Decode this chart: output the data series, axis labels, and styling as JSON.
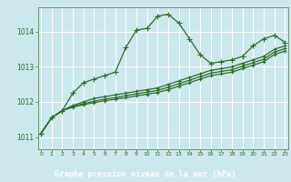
{
  "title": "Graphe pression niveau de la mer (hPa)",
  "bg_color": "#cde8ed",
  "plot_bg_color": "#cde8ed",
  "grid_color": "#ffffff",
  "line_color": "#2d6e2d",
  "xlabel_bg": "#2d6e2d",
  "xlabel_fg": "#ffffff",
  "x_ticks": [
    0,
    1,
    2,
    3,
    4,
    5,
    6,
    7,
    8,
    9,
    10,
    11,
    12,
    13,
    14,
    15,
    16,
    17,
    18,
    19,
    20,
    21,
    22,
    23
  ],
  "y_ticks": [
    1011,
    1012,
    1013,
    1014
  ],
  "ylim": [
    1010.65,
    1014.7
  ],
  "xlim": [
    -0.3,
    23.3
  ],
  "series": [
    [
      1011.1,
      1011.55,
      1011.75,
      1012.25,
      1012.55,
      1012.65,
      1012.75,
      1012.85,
      1013.55,
      1014.05,
      1014.1,
      1014.45,
      1014.5,
      1014.25,
      1013.8,
      1013.35,
      1013.1,
      1013.15,
      1013.2,
      1013.3,
      1013.6,
      1013.8,
      1013.9,
      1013.7
    ],
    [
      1011.1,
      1011.55,
      1011.75,
      1011.9,
      1012.0,
      1012.1,
      1012.15,
      1012.2,
      1012.25,
      1012.3,
      1012.35,
      1012.4,
      1012.5,
      1012.6,
      1012.7,
      1012.8,
      1012.9,
      1012.95,
      1013.0,
      1013.1,
      1013.2,
      1013.3,
      1013.5,
      1013.6
    ],
    [
      1011.1,
      1011.55,
      1011.75,
      1011.88,
      1011.95,
      1012.02,
      1012.08,
      1012.12,
      1012.18,
      1012.23,
      1012.28,
      1012.33,
      1012.42,
      1012.52,
      1012.62,
      1012.72,
      1012.82,
      1012.87,
      1012.92,
      1013.02,
      1013.12,
      1013.22,
      1013.42,
      1013.52
    ],
    [
      1011.1,
      1011.55,
      1011.75,
      1011.85,
      1011.92,
      1011.98,
      1012.03,
      1012.08,
      1012.12,
      1012.17,
      1012.22,
      1012.27,
      1012.35,
      1012.45,
      1012.55,
      1012.65,
      1012.75,
      1012.8,
      1012.85,
      1012.95,
      1013.05,
      1013.15,
      1013.35,
      1013.45
    ]
  ],
  "marker": "+",
  "marker_size_main": 4,
  "marker_size_other": 3,
  "line_width": 0.9
}
